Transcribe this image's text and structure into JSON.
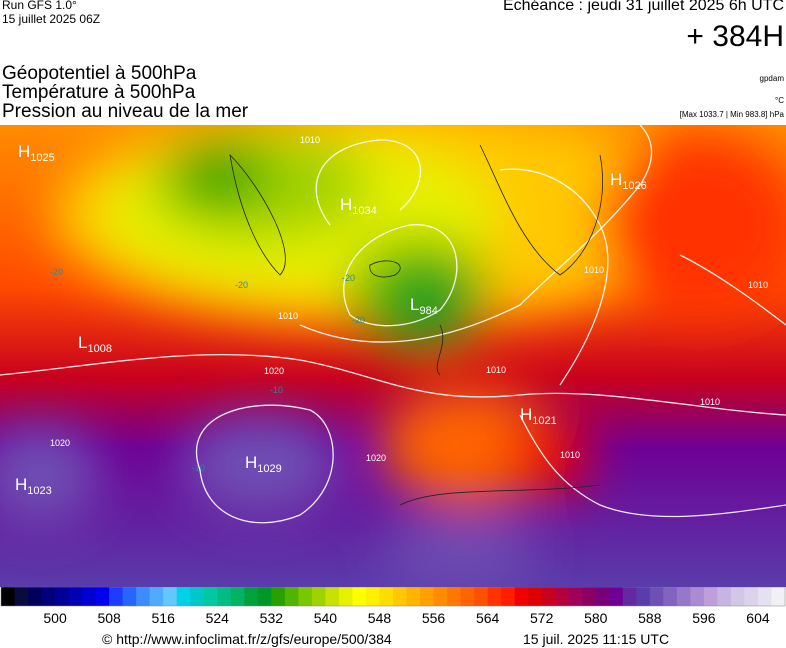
{
  "header": {
    "run": "Run GFS 1.0°",
    "run_date": "15 juillet 2025 06Z",
    "valid": "Echéance : jeudi 31 juillet 2025 6h UTC",
    "lead": "+ 384H",
    "titles": [
      "Géopotentiel à 500hPa",
      "Température à 500hPa",
      "Pression au niveau de la mer"
    ],
    "units": [
      "gpdam",
      "°C",
      "[Max 1033.7 | Min 983.8] hPa"
    ]
  },
  "map": {
    "centers": [
      {
        "type": "H",
        "value": "1025"
      },
      {
        "type": "H",
        "value": "1026"
      },
      {
        "type": "H",
        "value": "1034"
      },
      {
        "type": "L",
        "value": "984"
      },
      {
        "type": "L",
        "value": "1008"
      },
      {
        "type": "H",
        "value": "1021"
      },
      {
        "type": "H",
        "value": "1029"
      },
      {
        "type": "H",
        "value": "1023"
      }
    ],
    "isobar_labels": [
      "1010",
      "1020",
      "1020",
      "1020",
      "1010",
      "1010",
      "1010",
      "1010",
      "1010",
      "1010"
    ],
    "isotherm_labels": [
      "-20",
      "-20",
      "-20",
      "-20",
      "-10",
      "-10"
    ]
  },
  "colorbar": {
    "xlim": [
      492,
      608
    ],
    "xticks": [
      500,
      508,
      516,
      524,
      532,
      540,
      548,
      556,
      564,
      572,
      580,
      588,
      596,
      604
    ],
    "colors": [
      "#000000",
      "#0a0a3c",
      "#00005a",
      "#00007a",
      "#000096",
      "#0000b4",
      "#0000d2",
      "#0000f0",
      "#1e3cff",
      "#2864ff",
      "#3c8cff",
      "#50aaff",
      "#64c8ff",
      "#00d2e6",
      "#00c8c8",
      "#00c8a0",
      "#00be82",
      "#00b464",
      "#00a03c",
      "#009628",
      "#28a000",
      "#50b400",
      "#78c800",
      "#a0d200",
      "#c8e100",
      "#e6f000",
      "#ffff00",
      "#fff000",
      "#ffdc00",
      "#ffc800",
      "#ffb400",
      "#ffa000",
      "#ff8c00",
      "#ff7800",
      "#ff6400",
      "#ff5000",
      "#ff3200",
      "#ff1e00",
      "#f00000",
      "#dc0000",
      "#c8001e",
      "#b4003c",
      "#a0005a",
      "#8c0064",
      "#780078",
      "#6e0096",
      "#6428a0",
      "#5a3caa",
      "#6e50b4",
      "#8264be",
      "#9678c8",
      "#aa8cd2",
      "#be9fdc",
      "#c8b4e1",
      "#d2c8e6",
      "#dcd2eb",
      "#e6e1f0",
      "#f0f0f5"
    ]
  },
  "footer": {
    "source": "© http://www.infoclimat.fr/z/gfs/europe/500/384",
    "generated": "15 juil. 2025 11:15 UTC"
  }
}
